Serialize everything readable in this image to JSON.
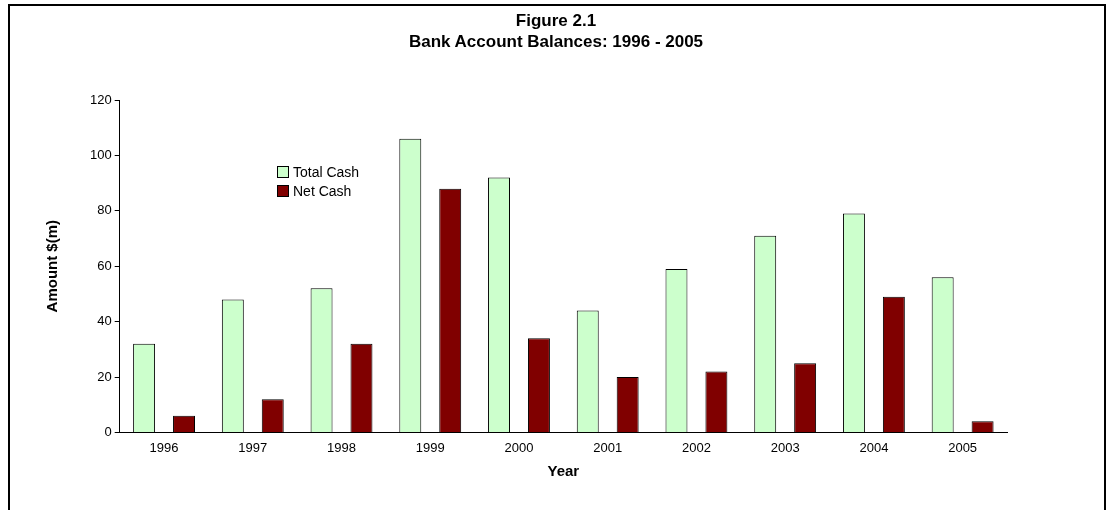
{
  "chart_data": {
    "type": "bar",
    "title": "Figure 2.1\nBank Account Balances: 1996 - 2005",
    "xlabel": "Year",
    "ylabel": "Amount $(m)",
    "categories": [
      "1996",
      "1997",
      "1998",
      "1999",
      "2000",
      "2001",
      "2002",
      "2003",
      "2004",
      "2005"
    ],
    "series": [
      {
        "name": "Total Cash",
        "color": "#ccffcc",
        "values": [
          32,
          48,
          52,
          106,
          92,
          44,
          59,
          71,
          79,
          56
        ]
      },
      {
        "name": "Net Cash",
        "color": "#800000",
        "values": [
          6,
          12,
          32,
          88,
          34,
          20,
          22,
          25,
          49,
          4
        ]
      }
    ],
    "ylim": [
      0,
      120
    ],
    "yticks": [
      0,
      20,
      40,
      60,
      80,
      100,
      120
    ],
    "grid": false,
    "legend": "top left"
  }
}
